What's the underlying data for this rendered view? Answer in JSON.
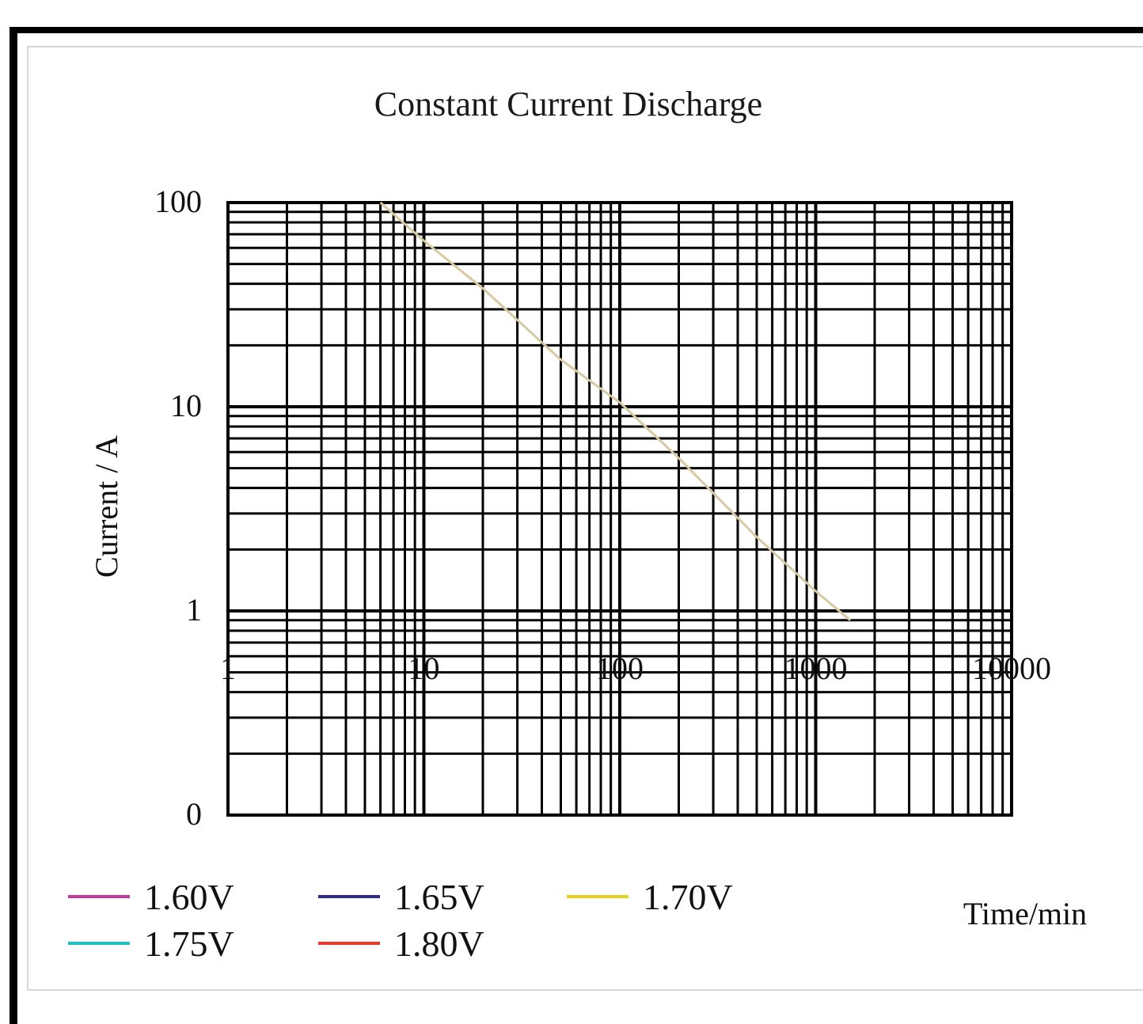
{
  "chart_data": {
    "type": "line",
    "title": "Constant Current Discharge",
    "xlabel": "Time/min",
    "ylabel": "Current / A",
    "x_scale": "log",
    "x_ticks": [
      "1",
      "10",
      "100",
      "1000",
      "10000"
    ],
    "xlim": [
      1,
      10000
    ],
    "y_ticks": [
      "100",
      "10",
      "1",
      "0"
    ],
    "ylim_log": [
      0.1,
      100
    ],
    "grid": true,
    "legend_placement": "bottom",
    "series": [
      {
        "name": "1.60V",
        "color": "#c0399b",
        "x": [],
        "y": []
      },
      {
        "name": "1.65V",
        "color": "#2e2b8f",
        "x": [],
        "y": []
      },
      {
        "name": "1.70V",
        "color": "#e6d21a",
        "x": [],
        "y": []
      },
      {
        "name": "1.75V",
        "color": "#1fbfbf",
        "x": [],
        "y": []
      },
      {
        "name": "1.80V",
        "color": "#e03a2e",
        "x": [],
        "y": []
      }
    ],
    "curve": {
      "color": "#d9c9a0",
      "x": [
        6,
        10,
        20,
        50,
        100,
        200,
        500,
        1000,
        1500
      ],
      "y": [
        100,
        65,
        38,
        17,
        10.5,
        5.6,
        2.3,
        1.25,
        0.9
      ]
    }
  }
}
